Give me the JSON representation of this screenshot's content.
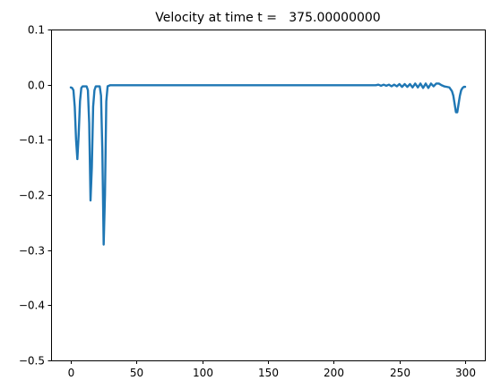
{
  "chart_data": {
    "type": "line",
    "title": "Velocity at time t =   375.00000000",
    "xlabel": "",
    "ylabel": "",
    "xlim": [
      -15,
      315
    ],
    "ylim": [
      -0.5,
      0.1
    ],
    "xticks": [
      0,
      50,
      100,
      150,
      200,
      250,
      300
    ],
    "yticks": [
      0.1,
      0.0,
      -0.1,
      -0.2,
      -0.3,
      -0.4,
      -0.5
    ],
    "ytick_labels": [
      "0.1",
      "0.0",
      "−0.1",
      "−0.2",
      "−0.3",
      "−0.4",
      "−0.5"
    ],
    "grid": false,
    "series": [
      {
        "color": "#1f77b4",
        "x": [
          0,
          1,
          2,
          3,
          4,
          5,
          6,
          7,
          8,
          9,
          10,
          11,
          12,
          13,
          14,
          15,
          16,
          17,
          18,
          19,
          20,
          21,
          22,
          23,
          24,
          25,
          26,
          27,
          28,
          30,
          40,
          60,
          100,
          150,
          200,
          230,
          232,
          234,
          236,
          238,
          240,
          242,
          244,
          246,
          248,
          250,
          252,
          254,
          256,
          258,
          260,
          262,
          264,
          266,
          268,
          270,
          272,
          274,
          276,
          278,
          280,
          282,
          284,
          286,
          288,
          290,
          291,
          292,
          293,
          294,
          295,
          296,
          297,
          298,
          299,
          300
        ],
        "y": [
          -0.005,
          -0.006,
          -0.01,
          -0.04,
          -0.1,
          -0.135,
          -0.09,
          -0.03,
          -0.006,
          -0.003,
          -0.003,
          -0.003,
          -0.003,
          -0.01,
          -0.07,
          -0.21,
          -0.15,
          -0.04,
          -0.01,
          -0.003,
          -0.003,
          -0.003,
          -0.003,
          -0.02,
          -0.12,
          -0.29,
          -0.2,
          -0.03,
          -0.003,
          -0.001,
          -0.001,
          -0.001,
          -0.001,
          -0.001,
          -0.001,
          -0.001,
          -0.001,
          0.0,
          -0.002,
          0.0,
          -0.002,
          0.0,
          -0.003,
          0.0,
          -0.003,
          0.001,
          -0.004,
          0.001,
          -0.004,
          0.001,
          -0.005,
          0.002,
          -0.005,
          0.002,
          -0.006,
          0.002,
          -0.006,
          0.002,
          -0.003,
          0.002,
          0.002,
          -0.001,
          -0.003,
          -0.004,
          -0.005,
          -0.012,
          -0.02,
          -0.035,
          -0.05,
          -0.05,
          -0.035,
          -0.02,
          -0.01,
          -0.006,
          -0.004,
          -0.004
        ]
      }
    ]
  }
}
